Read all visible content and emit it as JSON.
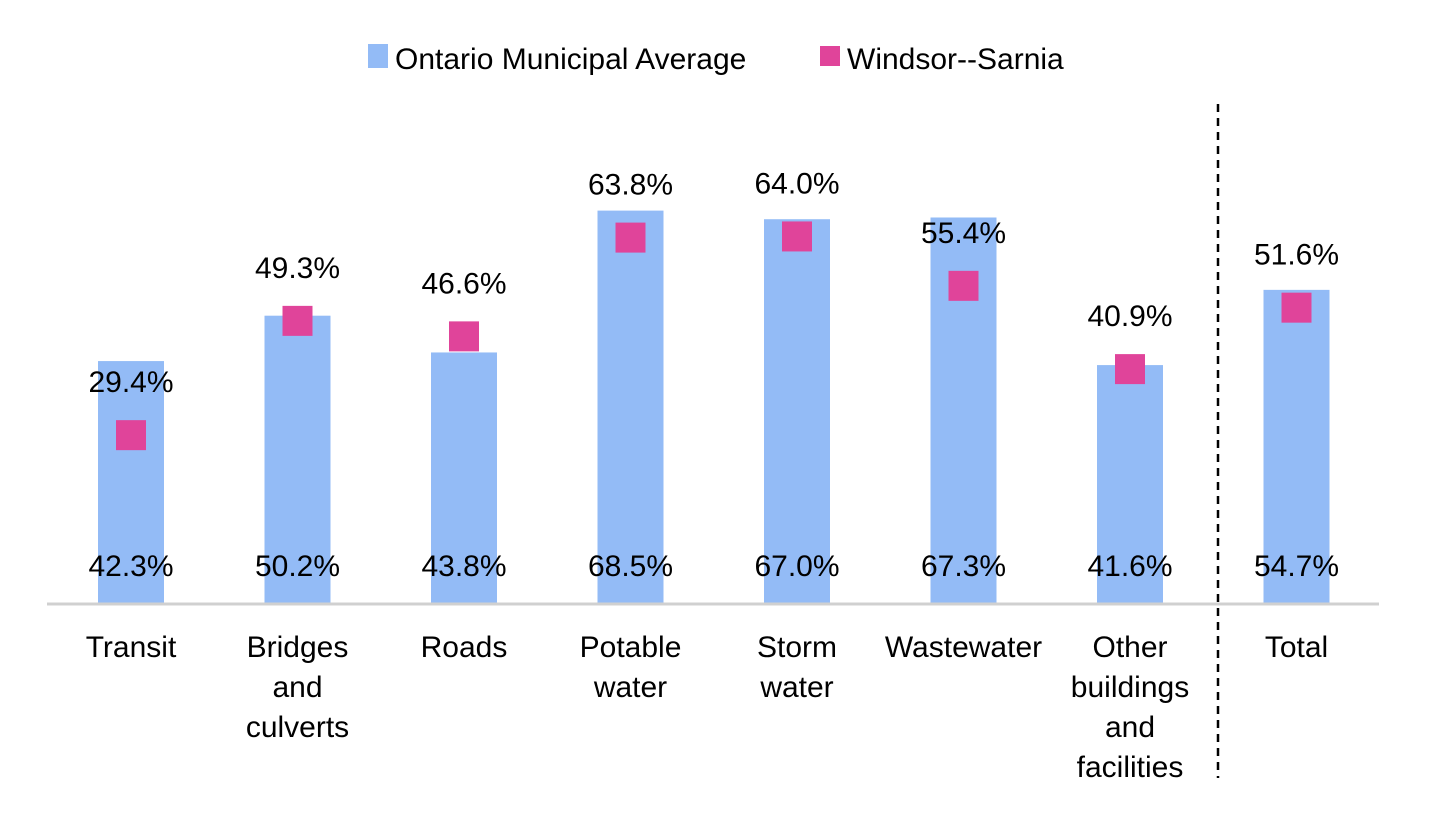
{
  "chart_data": {
    "type": "bar",
    "categories": [
      [
        "Transit"
      ],
      [
        "Bridges",
        "and",
        "culverts"
      ],
      [
        "Roads"
      ],
      [
        "Potable",
        "water"
      ],
      [
        "Storm",
        "water"
      ],
      [
        "Wastewater"
      ],
      [
        "Other",
        "buildings",
        "and",
        "facilities"
      ],
      [
        "Total"
      ]
    ],
    "series": [
      {
        "name": "Ontario Municipal Average",
        "type": "bar",
        "color": "#93BBF6",
        "values": [
          42.3,
          50.2,
          43.8,
          68.5,
          67.0,
          67.3,
          41.6,
          54.7
        ],
        "labels": [
          "42.3%",
          "50.2%",
          "43.8%",
          "68.5%",
          "67.0%",
          "67.3%",
          "41.6%",
          "54.7%"
        ]
      },
      {
        "name": "Windsor--Sarnia",
        "type": "marker",
        "color": "#E0449A",
        "values": [
          29.4,
          49.3,
          46.6,
          63.8,
          64.0,
          55.4,
          40.9,
          51.6
        ],
        "labels": [
          "29.4%",
          "49.3%",
          "46.6%",
          "63.8%",
          "64.0%",
          "55.4%",
          "40.9%",
          "51.6%"
        ]
      }
    ],
    "ylim": [
      0,
      70
    ],
    "legend_position": "top-center",
    "separator_before_last": true,
    "grid": false
  }
}
